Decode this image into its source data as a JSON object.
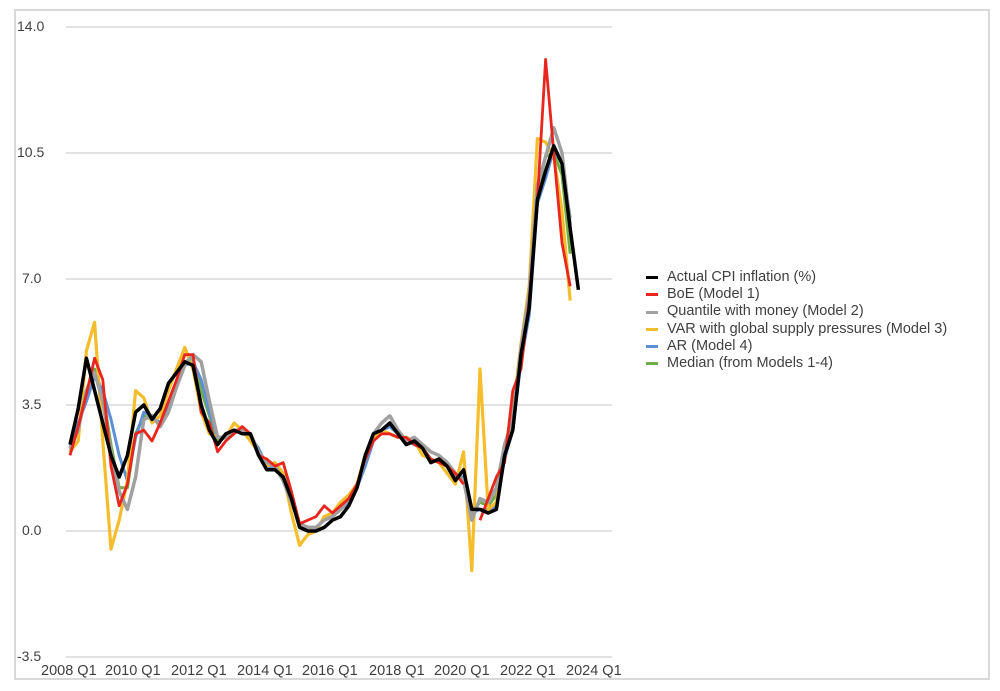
{
  "chart_data": {
    "type": "line",
    "title": "",
    "xlabel": "",
    "ylabel": "",
    "ylim": [
      -3.5,
      14.0
    ],
    "yticks": [
      "14.0",
      "10.5",
      "7.0",
      "3.5",
      "0.0",
      "-3.5"
    ],
    "xtick_labels": [
      "2008 Q1",
      "2010 Q1",
      "2012 Q1",
      "2014 Q1",
      "2016 Q1",
      "2018 Q1",
      "2020 Q1",
      "2022 Q1",
      "2024 Q1"
    ],
    "x_start": "2008 Q1",
    "x_frequency": "quarterly",
    "grid": "horizontal",
    "legend_position": "right",
    "series": [
      {
        "name": "Actual CPI inflation (%)",
        "color": "#000000",
        "width": 3.5,
        "values": [
          2.4,
          3.4,
          4.8,
          3.9,
          3.0,
          2.1,
          1.5,
          2.1,
          3.3,
          3.5,
          3.1,
          3.4,
          4.1,
          4.4,
          4.7,
          4.6,
          3.5,
          2.8,
          2.4,
          2.7,
          2.8,
          2.7,
          2.7,
          2.1,
          1.7,
          1.7,
          1.5,
          0.9,
          0.1,
          0.0,
          0.0,
          0.1,
          0.3,
          0.4,
          0.7,
          1.2,
          2.1,
          2.7,
          2.8,
          3.0,
          2.7,
          2.4,
          2.5,
          2.3,
          1.9,
          2.0,
          1.8,
          1.4,
          1.7,
          0.6,
          0.6,
          0.5,
          0.6,
          2.1,
          2.8,
          4.9,
          6.2,
          9.2,
          10.0,
          10.7,
          10.2,
          8.4,
          6.7
        ]
      },
      {
        "name": "BoE (Model 1)",
        "color": "#e8261e",
        "width": 2.8,
        "values": [
          2.1,
          2.9,
          3.8,
          4.8,
          4.2,
          1.8,
          0.7,
          1.3,
          2.7,
          2.8,
          2.5,
          3.0,
          3.6,
          4.2,
          4.9,
          4.9,
          3.3,
          3.0,
          2.2,
          2.5,
          2.7,
          2.9,
          2.7,
          2.1,
          2.0,
          1.8,
          1.9,
          1.1,
          0.2,
          0.3,
          0.4,
          0.7,
          0.5,
          0.7,
          0.9,
          1.3,
          2.0,
          2.5,
          2.7,
          2.7,
          2.6,
          2.6,
          2.4,
          2.3,
          2.0,
          1.9,
          1.8,
          1.6,
          1.3,
          null,
          0.3,
          0.9,
          1.5,
          1.9,
          3.9,
          4.5,
          6.4,
          9.2,
          13.1,
          10.5,
          8.0,
          6.8
        ]
      },
      {
        "name": "Quantile with money (Model 2)",
        "color": "#a0a0a0",
        "width": 3.5,
        "values": [
          2.3,
          2.8,
          3.9,
          4.4,
          3.6,
          2.2,
          1.1,
          0.6,
          1.5,
          3.1,
          3.2,
          2.9,
          3.3,
          4.0,
          4.6,
          4.9,
          4.7,
          3.6,
          2.6,
          2.6,
          2.8,
          2.8,
          2.7,
          2.2,
          1.9,
          1.8,
          1.4,
          0.8,
          0.2,
          0.1,
          0.1,
          0.3,
          0.4,
          0.6,
          0.9,
          1.2,
          2.0,
          2.7,
          3.0,
          3.2,
          2.8,
          2.5,
          2.6,
          2.4,
          2.2,
          2.1,
          1.9,
          1.6,
          1.4,
          0.3,
          0.9,
          0.8,
          1.2,
          2.4,
          3.1,
          5.1,
          6.6,
          9.6,
          10.4,
          11.2,
          10.5,
          8.5
        ]
      },
      {
        "name": "VAR with global supply pressures (Model 3)",
        "color": "#f5bd2b",
        "width": 3.2,
        "values": [
          2.2,
          2.5,
          5.0,
          5.8,
          2.5,
          -0.5,
          0.3,
          1.4,
          3.9,
          3.7,
          3.0,
          3.2,
          3.9,
          4.5,
          5.1,
          4.5,
          3.3,
          2.7,
          2.6,
          2.6,
          3.0,
          2.8,
          2.5,
          2.2,
          1.8,
          1.9,
          1.6,
          0.5,
          -0.4,
          -0.1,
          0.0,
          0.4,
          0.5,
          0.8,
          1.0,
          1.3,
          2.1,
          2.6,
          2.8,
          2.7,
          2.6,
          2.6,
          2.5,
          2.1,
          2.0,
          1.9,
          1.6,
          1.3,
          2.2,
          -1.1,
          4.5,
          0.6,
          0.8,
          2.3,
          3.3,
          5.2,
          6.8,
          10.9,
          10.8,
          10.4,
          8.9,
          6.4
        ]
      },
      {
        "name": "AR (Model 4)",
        "color": "#5b8fd6",
        "width": 3.0,
        "values": [
          2.3,
          3.0,
          3.6,
          4.3,
          3.9,
          3.1,
          2.1,
          1.4,
          2.6,
          3.3,
          3.2,
          3.0,
          3.4,
          4.0,
          4.6,
          4.7,
          4.2,
          3.3,
          2.6,
          2.6,
          2.8,
          2.8,
          2.6,
          2.3,
          1.8,
          1.7,
          1.5,
          0.9,
          0.2,
          0.1,
          0.1,
          0.3,
          0.4,
          0.6,
          0.8,
          1.2,
          1.8,
          2.5,
          2.8,
          2.9,
          2.7,
          2.5,
          2.4,
          2.3,
          2.0,
          1.9,
          1.8,
          1.5,
          1.5,
          0.5,
          0.6,
          0.6,
          0.7,
          2.0,
          2.8,
          4.7,
          6.0,
          9.1,
          9.8,
          10.6,
          10.2,
          8.7
        ]
      },
      {
        "name": "Median (from Models 1-4)",
        "color": "#70ad47",
        "width": 3.0,
        "values": [
          2.2,
          2.9,
          3.9,
          4.5,
          3.8,
          2.4,
          1.2,
          1.2,
          2.7,
          3.2,
          3.1,
          3.0,
          3.5,
          4.1,
          4.7,
          4.8,
          3.9,
          3.2,
          2.5,
          2.6,
          2.8,
          2.8,
          2.7,
          2.2,
          1.9,
          1.8,
          1.6,
          0.9,
          0.2,
          0.1,
          0.1,
          0.3,
          0.4,
          0.7,
          0.9,
          1.3,
          2.0,
          2.6,
          2.8,
          2.9,
          2.7,
          2.5,
          2.5,
          2.3,
          2.0,
          1.9,
          1.8,
          1.5,
          1.5,
          0.5,
          0.8,
          0.7,
          1.0,
          2.2,
          3.2,
          4.9,
          6.5,
          9.4,
          10.4,
          10.5,
          9.9,
          7.7
        ]
      }
    ]
  }
}
